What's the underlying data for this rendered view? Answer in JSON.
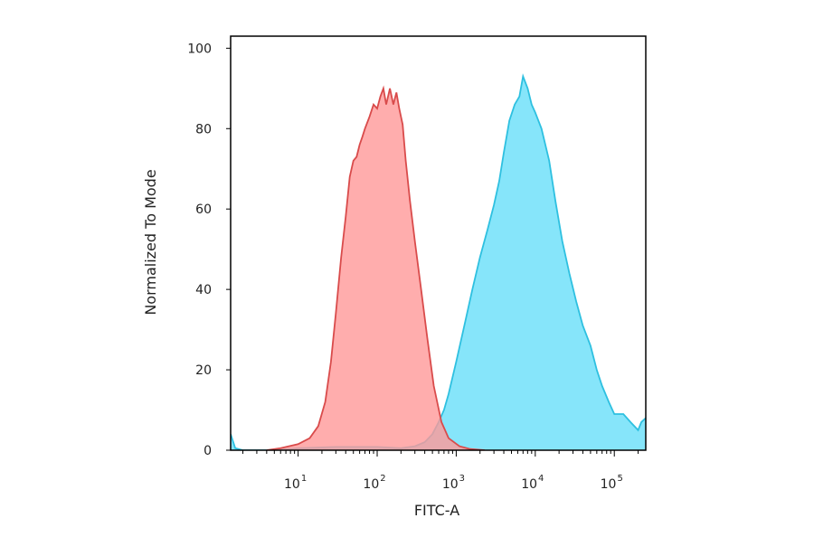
{
  "chart_data": {
    "type": "area",
    "title": "",
    "xlabel": "FITC-A",
    "ylabel": "Normalized To Mode",
    "x_scale": "log",
    "xlim": [
      1.4,
      250000
    ],
    "ylim": [
      0,
      103
    ],
    "y_ticks": [
      0,
      20,
      40,
      60,
      80,
      100
    ],
    "x_ticks": [
      {
        "value": 10,
        "base": "10",
        "exp": "1"
      },
      {
        "value": 100,
        "base": "10",
        "exp": "2"
      },
      {
        "value": 1000,
        "base": "10",
        "exp": "3"
      },
      {
        "value": 10000,
        "base": "10",
        "exp": "4"
      },
      {
        "value": 100000,
        "base": "10",
        "exp": "5"
      }
    ],
    "grid": false,
    "legend": "none",
    "series": [
      {
        "color_fill": "#ff9999",
        "color_line": "#d94b4b",
        "points": [
          [
            4,
            0
          ],
          [
            6,
            0.5
          ],
          [
            10,
            1.5
          ],
          [
            14,
            3
          ],
          [
            18,
            6
          ],
          [
            22,
            12
          ],
          [
            26,
            22
          ],
          [
            30,
            34
          ],
          [
            35,
            48
          ],
          [
            40,
            58
          ],
          [
            45,
            68
          ],
          [
            50,
            72
          ],
          [
            55,
            73
          ],
          [
            60,
            76
          ],
          [
            65,
            78
          ],
          [
            70,
            80
          ],
          [
            80,
            83
          ],
          [
            90,
            86
          ],
          [
            100,
            85
          ],
          [
            110,
            88
          ],
          [
            120,
            90
          ],
          [
            130,
            86
          ],
          [
            145,
            90
          ],
          [
            160,
            86
          ],
          [
            175,
            89
          ],
          [
            190,
            85
          ],
          [
            210,
            81
          ],
          [
            230,
            72
          ],
          [
            260,
            62
          ],
          [
            300,
            52
          ],
          [
            360,
            40
          ],
          [
            430,
            28
          ],
          [
            520,
            16
          ],
          [
            650,
            7
          ],
          [
            800,
            3
          ],
          [
            1100,
            1
          ],
          [
            1500,
            0.3
          ],
          [
            2300,
            0
          ]
        ]
      },
      {
        "color_fill": "#80e4fa",
        "color_line": "#2ec0e0",
        "points": [
          [
            1.4,
            4
          ],
          [
            1.6,
            0.5
          ],
          [
            2,
            0
          ],
          [
            5,
            0
          ],
          [
            10,
            0.5
          ],
          [
            30,
            0.8
          ],
          [
            100,
            0.8
          ],
          [
            200,
            0.5
          ],
          [
            300,
            1
          ],
          [
            400,
            2
          ],
          [
            500,
            4
          ],
          [
            600,
            7
          ],
          [
            700,
            10
          ],
          [
            800,
            14
          ],
          [
            1000,
            22
          ],
          [
            1300,
            32
          ],
          [
            1600,
            40
          ],
          [
            2000,
            48
          ],
          [
            2500,
            55
          ],
          [
            3000,
            61
          ],
          [
            3500,
            67
          ],
          [
            4000,
            74
          ],
          [
            4700,
            82
          ],
          [
            5500,
            86
          ],
          [
            6300,
            88
          ],
          [
            7000,
            93
          ],
          [
            8000,
            90
          ],
          [
            9000,
            86
          ],
          [
            10000,
            84
          ],
          [
            12000,
            80
          ],
          [
            15000,
            72
          ],
          [
            18000,
            62
          ],
          [
            22000,
            52
          ],
          [
            27000,
            44
          ],
          [
            33000,
            37
          ],
          [
            40000,
            31
          ],
          [
            50000,
            26
          ],
          [
            60000,
            20
          ],
          [
            70000,
            16
          ],
          [
            85000,
            12
          ],
          [
            100000,
            9
          ],
          [
            130000,
            9
          ],
          [
            160000,
            7
          ],
          [
            200000,
            5
          ],
          [
            220000,
            7
          ],
          [
            250000,
            8
          ]
        ]
      }
    ]
  }
}
